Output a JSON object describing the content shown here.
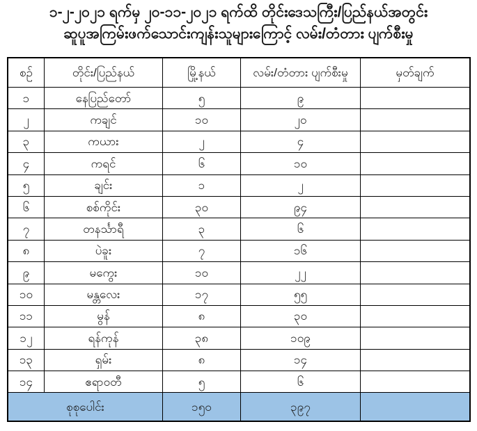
{
  "title": {
    "line1": "၁-၂-၂၀၂၁ ရက်မှ ၂၀-၁၁-၂၀၂၁ ရက်ထိ တိုင်းဒေသကြီး/ပြည်နယ်အတွင်း",
    "line2": "ဆူပူအကြမ်းဖက်သောင်းကျန်းသူများကြောင့် လမ်း/တံတား ပျက်စီးမှု"
  },
  "table": {
    "headers": {
      "no": "စဉ်",
      "region": "တိုင်း/ပြည်နယ်",
      "township": "မြို့နယ်",
      "damage": "လမ်း/တံတား ပျက်စီးမှု",
      "remark": "မှတ်ချက်"
    },
    "rows": [
      {
        "no": "၁",
        "region": "နေပြည်တော်",
        "township": "၅",
        "damage": "၉",
        "remark": ""
      },
      {
        "no": "၂",
        "region": "ကချင်",
        "township": "၁၀",
        "damage": "၂၀",
        "remark": ""
      },
      {
        "no": "၃",
        "region": "ကယား",
        "township": "၂",
        "damage": "၄",
        "remark": ""
      },
      {
        "no": "၄",
        "region": "ကရင်",
        "township": "၆",
        "damage": "၁၀",
        "remark": ""
      },
      {
        "no": "၅",
        "region": "ချင်း",
        "township": "၁",
        "damage": "၂",
        "remark": ""
      },
      {
        "no": "၆",
        "region": "စစ်ကိုင်း",
        "township": "၃၀",
        "damage": "၉၄",
        "remark": ""
      },
      {
        "no": "၇",
        "region": "တနင်္သာရီ",
        "township": "၃",
        "damage": "၆",
        "remark": ""
      },
      {
        "no": "၈",
        "region": "ပဲခူး",
        "township": "၇",
        "damage": "၁၆",
        "remark": ""
      },
      {
        "no": "၉",
        "region": "မကွေး",
        "township": "၁၀",
        "damage": "၂၂",
        "remark": ""
      },
      {
        "no": "၁၀",
        "region": "မန္တလေး",
        "township": "၁၇",
        "damage": "၅၅",
        "remark": ""
      },
      {
        "no": "၁၁",
        "region": "မွန်",
        "township": "၈",
        "damage": "၃၀",
        "remark": ""
      },
      {
        "no": "၁၂",
        "region": "ရန်ကုန်",
        "township": "၃၈",
        "damage": "၁၀၉",
        "remark": ""
      },
      {
        "no": "၁၃",
        "region": "ရှမ်း",
        "township": "၈",
        "damage": "၁၄",
        "remark": ""
      },
      {
        "no": "၁၄",
        "region": "ဧရာဝတီ",
        "township": "၅",
        "damage": "၆",
        "remark": ""
      }
    ],
    "total": {
      "label": "စုစုပေါင်း",
      "township": "၁၅၀",
      "damage": "၃၉၇",
      "remark": ""
    }
  },
  "colors": {
    "total_row_bg": "#9CC3E6",
    "border": "#000000",
    "text": "#1c1c1c"
  }
}
